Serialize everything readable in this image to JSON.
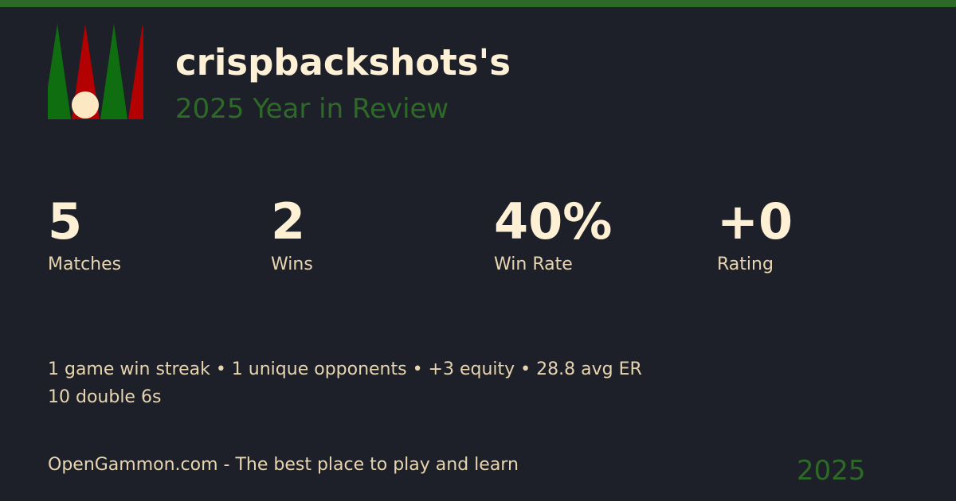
{
  "header": {
    "title": "crispbackshots's",
    "subtitle": "2025 Year in Review"
  },
  "stats": [
    {
      "value": "5",
      "label": "Matches"
    },
    {
      "value": "2",
      "label": "Wins"
    },
    {
      "value": "40%",
      "label": "Win Rate"
    },
    {
      "value": "+0",
      "label": "Rating"
    }
  ],
  "details": {
    "line1": "1 game win streak • 1 unique opponents • +3 equity • 28.8 avg ER",
    "line2": "10 double 6s"
  },
  "footer": {
    "tagline": "OpenGammon.com - The best place to play and learn",
    "year": "2025"
  },
  "colors": {
    "background": "#1e2029",
    "accent_green": "#2d6a27",
    "text": "#fdf0d5",
    "point_green": "#0f6e0f",
    "point_red": "#b30000",
    "checker": "#fde8c4"
  }
}
